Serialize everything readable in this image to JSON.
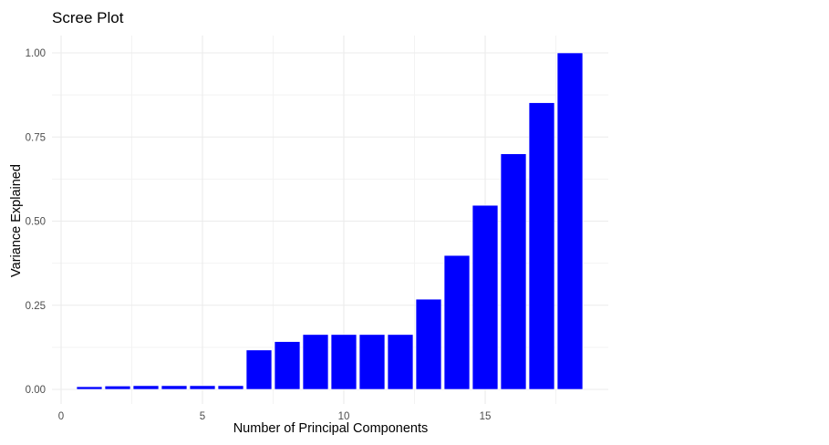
{
  "chart_data": {
    "type": "bar",
    "title": "Scree Plot",
    "xlabel": "Number of Principal Components",
    "ylabel": "Variance Explained",
    "x": [
      1,
      2,
      3,
      4,
      5,
      6,
      7,
      8,
      9,
      10,
      11,
      12,
      13,
      14,
      15,
      16,
      17,
      18
    ],
    "values": [
      0.008,
      0.01,
      0.011,
      0.011,
      0.011,
      0.011,
      0.117,
      0.142,
      0.163,
      0.163,
      0.163,
      0.163,
      0.268,
      0.398,
      0.547,
      0.7,
      0.852,
      1.0
    ],
    "xticks": [
      0,
      5,
      10,
      15
    ],
    "yticks": [
      0.0,
      0.25,
      0.5,
      0.75,
      1.0
    ],
    "ytick_labels": [
      "0.00",
      "0.25",
      "0.50",
      "0.75",
      "1.00"
    ],
    "xlim": [
      -0.3,
      19.4
    ],
    "ylim": [
      -0.044,
      1.05
    ],
    "grid": true,
    "legend": null,
    "bar_color": "#0000FF",
    "bar_outline_color": "#ffffff"
  }
}
